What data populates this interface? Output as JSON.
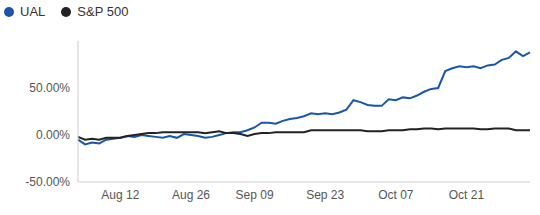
{
  "chart_data": {
    "type": "line",
    "legend": "top-left",
    "grid": false,
    "categories": [
      null,
      null,
      null,
      null,
      null,
      null,
      "Aug 12",
      null,
      null,
      null,
      null,
      null,
      null,
      null,
      null,
      null,
      "Aug 26",
      null,
      null,
      null,
      null,
      null,
      null,
      null,
      null,
      "Sep 09",
      null,
      null,
      null,
      null,
      null,
      null,
      null,
      null,
      null,
      "Sep 23",
      null,
      null,
      null,
      null,
      null,
      null,
      null,
      null,
      null,
      "Oct 07",
      null,
      null,
      null,
      null,
      null,
      null,
      null,
      null,
      null,
      "Oct 21",
      null,
      null,
      null,
      null,
      null,
      null,
      null,
      null,
      null
    ],
    "ylim": [
      -50,
      100
    ],
    "yticks": [
      {
        "value": -50,
        "label": "-50.00%"
      },
      {
        "value": 0,
        "label": "0.00%"
      },
      {
        "value": 50,
        "label": "50.00%"
      }
    ],
    "series": [
      {
        "name": "UAL",
        "color": "#1a56a8",
        "values": [
          -5,
          -10,
          -8,
          -9,
          -5,
          -4,
          -3,
          -1,
          -2,
          0,
          -1,
          -2,
          -3,
          -1,
          -3,
          1,
          0,
          -1,
          -3,
          -2,
          0,
          2,
          3,
          3,
          5,
          8,
          13,
          13,
          12,
          15,
          17,
          18,
          20,
          23,
          22,
          23,
          22,
          24,
          27,
          37,
          35,
          32,
          31,
          31,
          38,
          37,
          40,
          39,
          42,
          46,
          49,
          50,
          68,
          71,
          73,
          72,
          73,
          71,
          74,
          75,
          80,
          82,
          89,
          84,
          88
        ]
      },
      {
        "name": "S&P 500",
        "color": "#222222",
        "values": [
          -2,
          -5,
          -4,
          -5,
          -3,
          -3,
          -3,
          -1,
          0,
          1,
          2,
          2,
          3,
          3,
          3,
          3,
          3,
          3,
          2,
          3,
          4,
          2,
          2,
          1,
          -1,
          1,
          2,
          2,
          3,
          3,
          3,
          3,
          3,
          5,
          5,
          5,
          5,
          5,
          5,
          5,
          5,
          4,
          4,
          4,
          5,
          5,
          5,
          6,
          6,
          7,
          7,
          6,
          7,
          7,
          7,
          7,
          7,
          6,
          6,
          7,
          7,
          7,
          5,
          5,
          5
        ]
      }
    ]
  }
}
